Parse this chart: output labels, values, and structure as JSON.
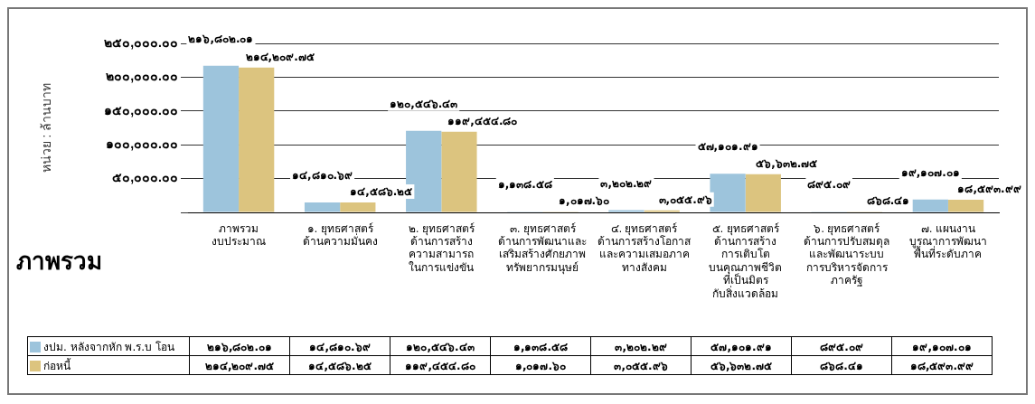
{
  "chart_data": {
    "type": "bar",
    "title": "ภาพรวม",
    "ylabel": "หน่วย : ล้านบาท",
    "categories": [
      "ภาพรวม\nงบประมาณ",
      "๑. ยุทธศาสตร์\nด้านความมั่นคง",
      "๒. ยุทธศาสตร์\nด้านการสร้าง\nความสามารถ\nในการแข่งขัน",
      "๓. ยุทธศาสตร์\nด้านการพัฒนาและ\nเสริมสร้างศักยภาพ\nทรัพยากรมนุษย์",
      "๔. ยุทธศาสตร์\nด้านการสร้างโอกาส\nและความเสมอภาค\nทางสังคม",
      "๕. ยุทธศาสตร์\nด้านการสร้าง\nการเติบโต\nบนคุณภาพชีวิต\nที่เป็นมิตร\nกับสิ่งแวดล้อม",
      "๖. ยุทธศาสตร์\nด้านการปรับสมดุล\nและพัฒนาระบบ\nการบริหารจัดการ\nภาครัฐ",
      "๗. แผนงาน\nบูรณาการพัฒนา\nพื้นที่ระดับภาค"
    ],
    "series": [
      {
        "name": "งปม. หลังจากหัก พ.ร.บ โอน",
        "color": "#9dc4dc",
        "values": [
          216802.01,
          14810.69,
          120546.43,
          1138.58,
          3202.29,
          57101.91,
          895.09,
          19107.01
        ],
        "value_labels": [
          "๒๑๖,๘๐๒.๐๑",
          "๑๔,๘๑๐.๖๙",
          "๑๒๐,๕๔๖.๔๓",
          "๑,๑๓๘.๕๘",
          "๓,๒๐๒.๒๙",
          "๕๗,๑๐๑.๙๑",
          "๘๙๕.๐๙",
          "๑๙,๑๐๗.๐๑"
        ]
      },
      {
        "name": "ก่อหนี้",
        "color": "#dcc47f",
        "values": [
          214209.75,
          14586.25,
          119454.8,
          1017.6,
          3055.96,
          56632.75,
          868.41,
          18593.99
        ],
        "value_labels": [
          "๒๑๔,๒๐๙.๗๕",
          "๑๔,๕๘๖.๒๕",
          "๑๑๙,๔๕๔.๘๐",
          "๑,๐๑๗.๖๐",
          "๓,๐๕๕.๙๖",
          "๕๖,๖๓๒.๗๕",
          "๘๖๘.๔๑",
          "๑๘,๕๙๓.๙๙"
        ]
      }
    ],
    "ylim": [
      0,
      250000
    ],
    "yticks": [
      {
        "value": 0,
        "label": null
      },
      {
        "value": 50000,
        "label": "๕๐,๐๐๐.๐๐"
      },
      {
        "value": 100000,
        "label": "๑๐๐,๐๐๐.๐๐"
      },
      {
        "value": 150000,
        "label": "๑๕๐,๐๐๐.๐๐"
      },
      {
        "value": 200000,
        "label": "๒๐๐,๐๐๐.๐๐"
      },
      {
        "value": 250000,
        "label": "๒๕๐,๐๐๐.๐๐"
      }
    ],
    "grid": "y",
    "legend": "bottom left"
  }
}
